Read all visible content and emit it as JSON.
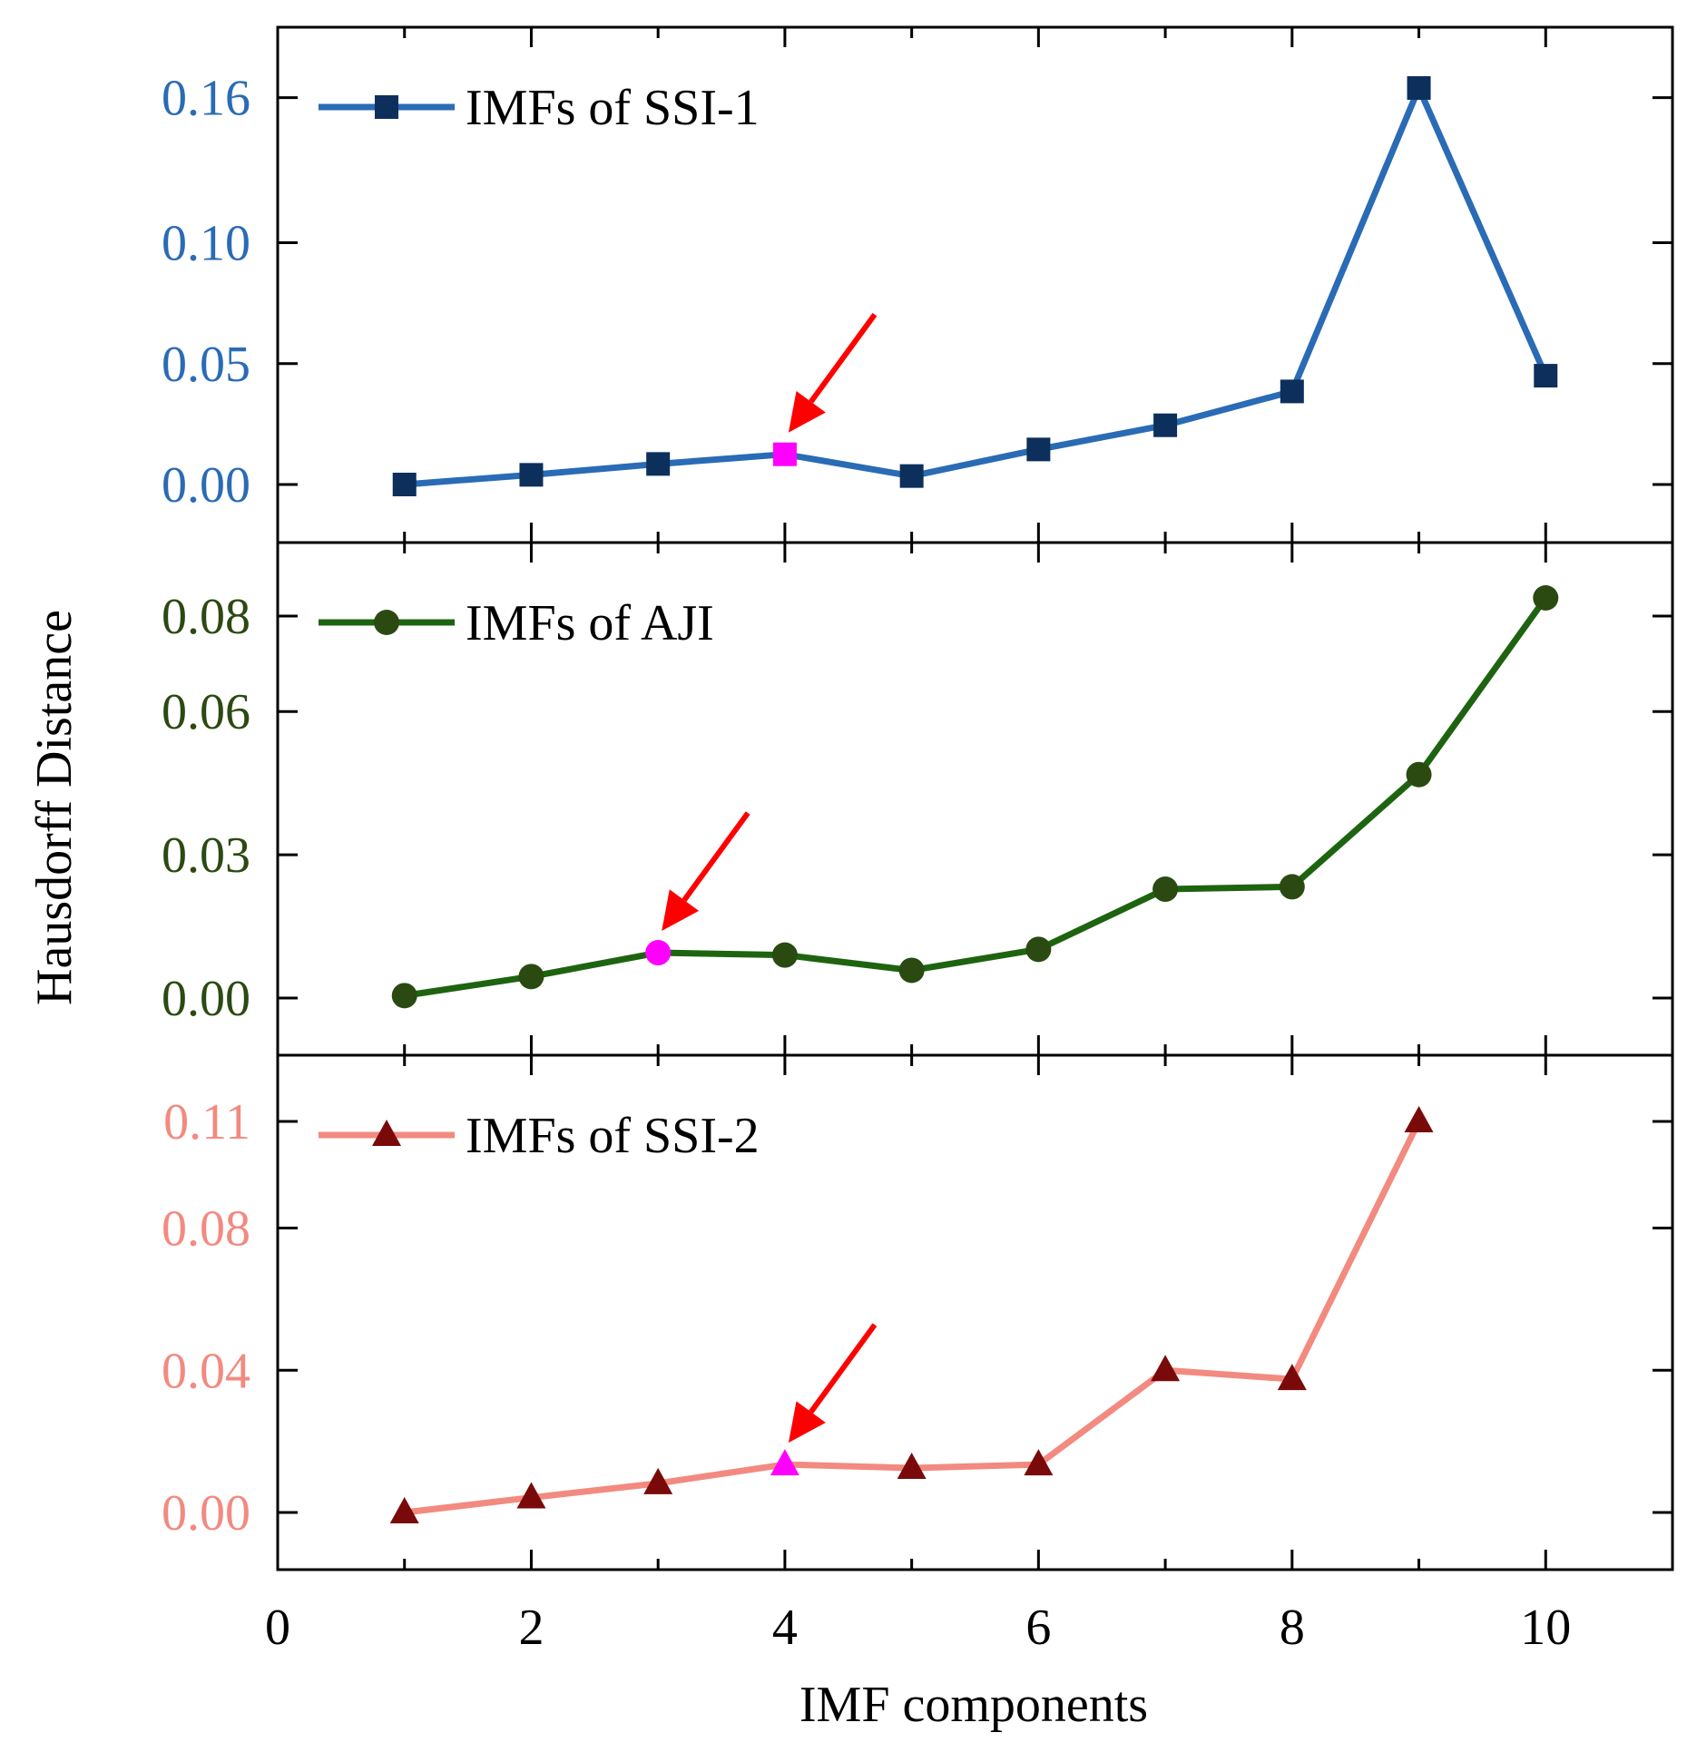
{
  "chart_data": {
    "type": "line",
    "xlabel": "IMF components",
    "ylabel": "Hausdorff  Distance",
    "xlim": [
      0,
      11
    ],
    "xticks": [
      "0",
      "2",
      "4",
      "6",
      "8",
      "10"
    ],
    "panels": [
      {
        "series": {
          "name": "IMFs of SSI-1",
          "x": [
            1,
            2,
            3,
            4,
            5,
            6,
            7,
            8,
            9,
            10
          ],
          "values": [
            0.0,
            0.004,
            0.0085,
            0.0125,
            0.0035,
            0.0145,
            0.0245,
            0.0385,
            0.164,
            0.045
          ],
          "line_color": "#2a6bb5",
          "marker": "square",
          "marker_color": "#0d2f5c",
          "highlight_index": 3,
          "highlight_color": "#ff00ff"
        },
        "tick_color": "#2a6bb5",
        "yticks": [
          "0.00",
          "0.05",
          "0.10",
          "0.16"
        ],
        "legend_position": "top-left",
        "arrow_target_x": 4
      },
      {
        "series": {
          "name": "IMFs of AJI",
          "x": [
            1,
            2,
            3,
            4,
            5,
            6,
            7,
            8,
            9,
            10
          ],
          "values": [
            0.0005,
            0.0045,
            0.0095,
            0.009,
            0.0058,
            0.0102,
            0.0228,
            0.0233,
            0.0468,
            0.0838
          ],
          "line_color": "#1e6410",
          "marker": "circle",
          "marker_color": "#2b4a12",
          "highlight_index": 2,
          "highlight_color": "#ff00ff"
        },
        "tick_color": "#2b4a12",
        "yticks": [
          "0.00",
          "0.03",
          "0.06",
          "0.08"
        ],
        "legend_position": "top-left",
        "arrow_target_x": 3
      },
      {
        "series": {
          "name": "IMFs of SSI-2",
          "x": [
            1,
            2,
            3,
            4,
            5,
            6,
            7,
            8,
            9
          ],
          "values": [
            0.0,
            0.0042,
            0.0082,
            0.0135,
            0.0125,
            0.0135,
            0.04,
            0.0375,
            0.11
          ],
          "line_color": "#f28a80",
          "marker": "triangle",
          "marker_color": "#7a0a0a",
          "highlight_index": 3,
          "highlight_color": "#ff00ff"
        },
        "tick_color": "#f28a80",
        "yticks": [
          "0.00",
          "0.04",
          "0.08",
          "0.11"
        ],
        "legend_position": "top-left",
        "arrow_target_x": 4
      }
    ]
  }
}
